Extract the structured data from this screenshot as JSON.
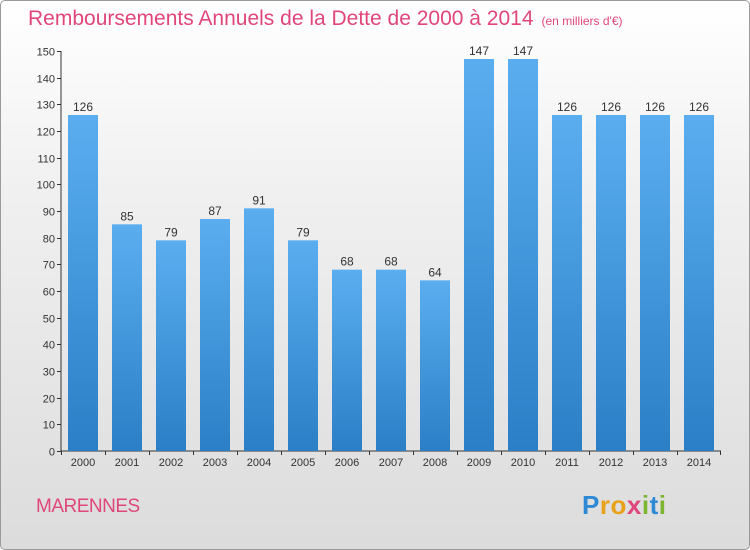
{
  "header": {
    "title": "Remboursements Annuels de la Dette de 2000 à 2014",
    "unit": "(en milliers d'€)"
  },
  "footer": {
    "commune": "MARENNES",
    "logo_letters": [
      {
        "ch": "P",
        "color": "#2f8ad6"
      },
      {
        "ch": "r",
        "color": "#e8a219"
      },
      {
        "ch": "o",
        "color": "#e8a219"
      },
      {
        "ch": "x",
        "color": "#e0467c"
      },
      {
        "ch": "i",
        "color": "#7cb531"
      },
      {
        "ch": "t",
        "color": "#2f8ad6"
      },
      {
        "ch": "i",
        "color": "#7cb531"
      }
    ]
  },
  "chart_data": {
    "type": "bar",
    "title": "Remboursements Annuels de la Dette de 2000 à 2014",
    "subtitle": "(en milliers d'€)",
    "xlabel": "",
    "ylabel": "",
    "categories": [
      "2000",
      "2001",
      "2002",
      "2003",
      "2004",
      "2005",
      "2006",
      "2007",
      "2008",
      "2009",
      "2010",
      "2011",
      "2012",
      "2013",
      "2014"
    ],
    "values": [
      126,
      85,
      79,
      87,
      91,
      79,
      68,
      68,
      64,
      147,
      147,
      126,
      126,
      126,
      126
    ],
    "ylim": [
      0,
      150
    ],
    "yticks": [
      0,
      10,
      20,
      30,
      40,
      50,
      60,
      70,
      80,
      90,
      100,
      110,
      120,
      130,
      140,
      150
    ],
    "grid": false,
    "legend": "none",
    "colors": {
      "bar_top": "#5aaef0",
      "bar_bottom": "#2a7fc6",
      "text": "#333333",
      "accent": "#e0467c"
    }
  }
}
